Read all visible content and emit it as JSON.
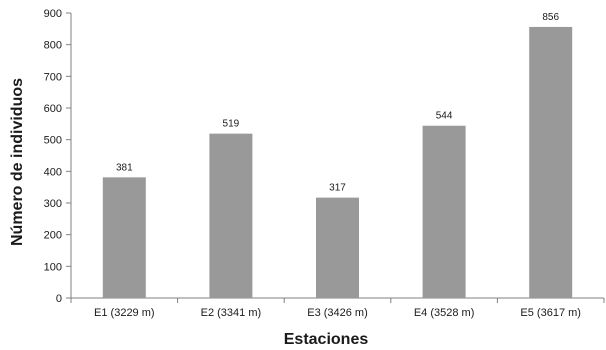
{
  "chart_data": {
    "type": "bar",
    "title": "",
    "xlabel": "Estaciones",
    "ylabel": "Número de individuos",
    "categories": [
      "E1 (3229 m)",
      "E2 (3341 m)",
      "E3 (3426 m)",
      "E4 (3528 m)",
      "E5 (3617 m)"
    ],
    "values": [
      381,
      519,
      317,
      544,
      856
    ],
    "data_labels": [
      "381",
      "519",
      "317",
      "544",
      "856"
    ],
    "ylim": [
      0,
      900
    ],
    "yticks": [
      0,
      100,
      200,
      300,
      400,
      500,
      600,
      700,
      800,
      900
    ],
    "ytick_labels": [
      "0",
      "100",
      "200",
      "300",
      "400",
      "500",
      "600",
      "700",
      "800",
      "900"
    ],
    "grid": false,
    "legend": "none",
    "colors": {
      "bar": "#999999",
      "axis": "#808080",
      "text": "#1a1a1a"
    }
  }
}
